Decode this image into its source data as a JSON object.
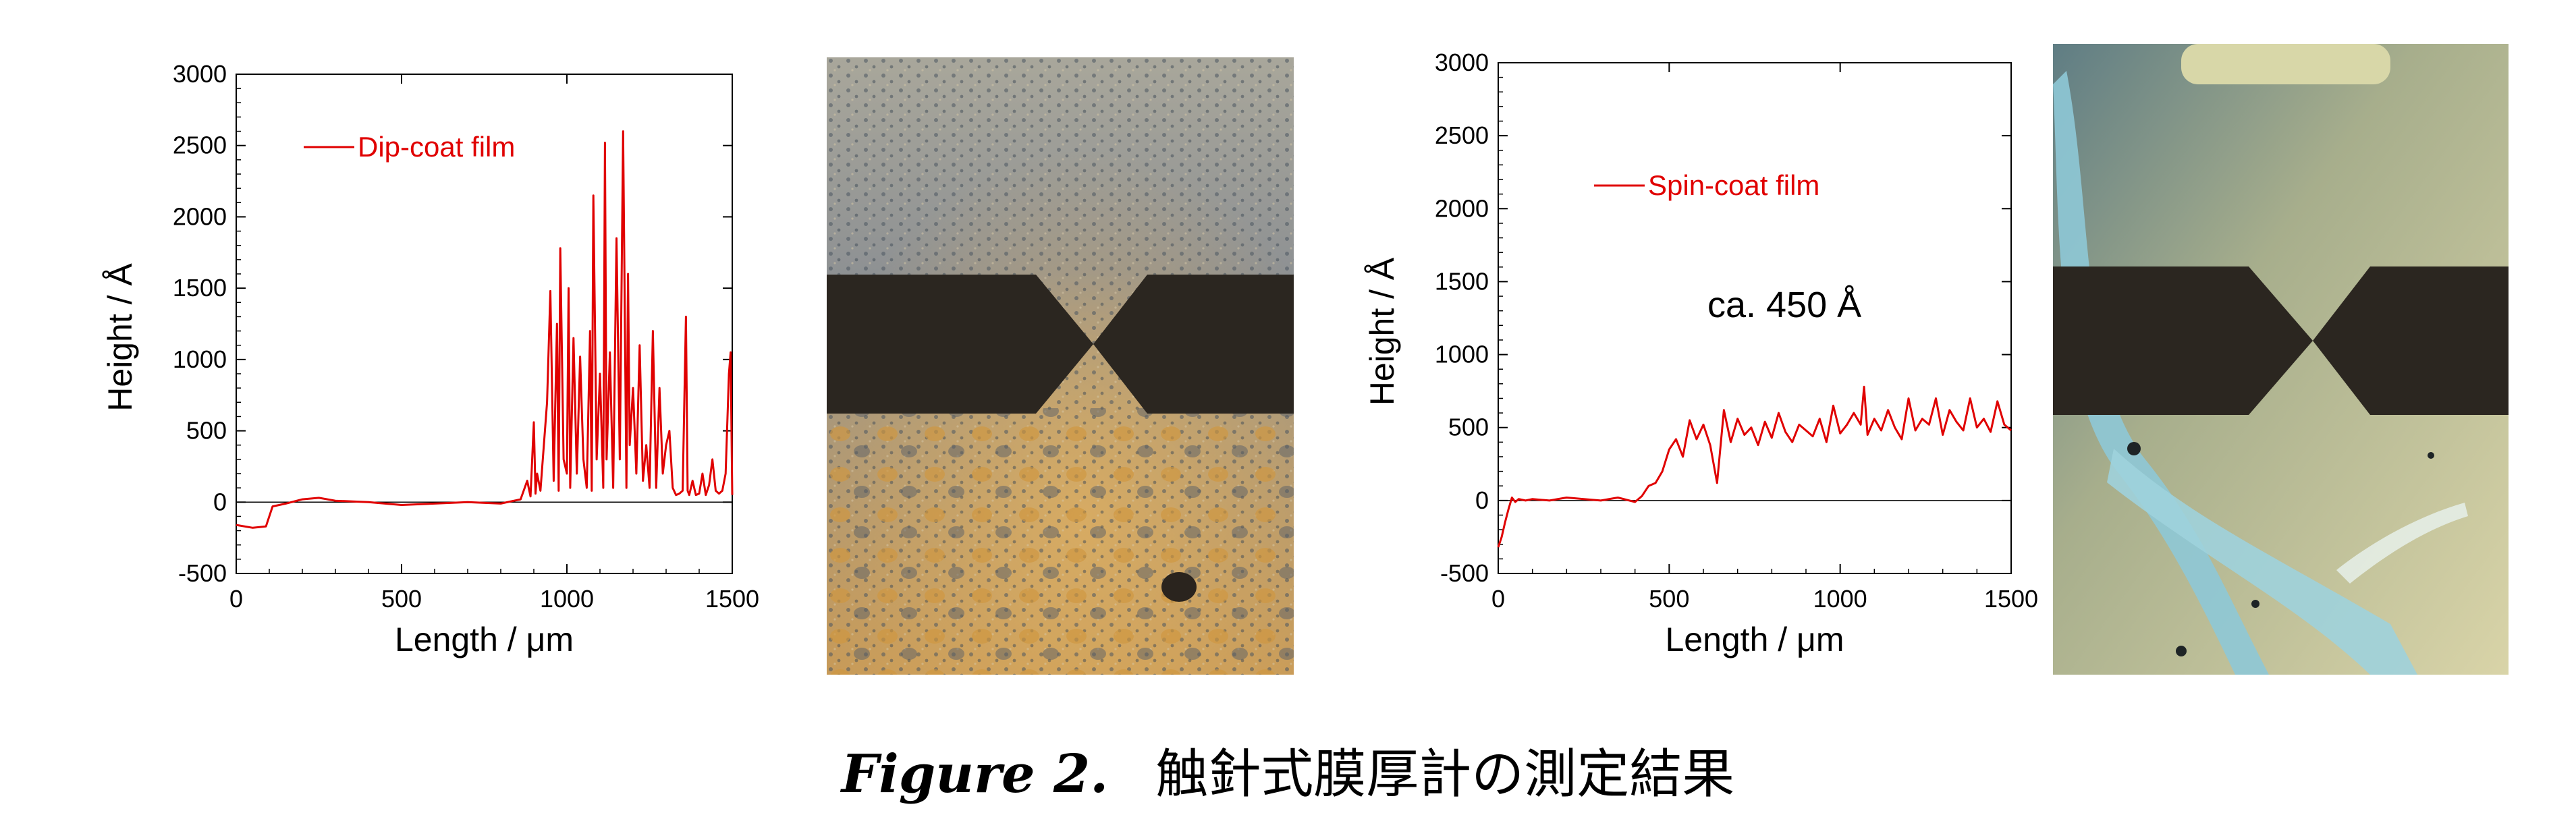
{
  "chart_data": [
    {
      "type": "line",
      "title": "",
      "xlabel": "Length / μm",
      "ylabel": "Height / Å",
      "xlim": [
        0,
        1500
      ],
      "ylim": [
        -500,
        3000
      ],
      "xticks": [
        0,
        500,
        1000,
        1500
      ],
      "yticks": [
        -500,
        0,
        500,
        1000,
        1500,
        2000,
        2500,
        3000
      ],
      "grid": false,
      "legend_placement": "top-left",
      "color": "#e00000",
      "series": [
        {
          "name": "Dip-coat film",
          "x": [
            0,
            50,
            90,
            100,
            110,
            150,
            200,
            250,
            300,
            400,
            500,
            600,
            700,
            800,
            860,
            880,
            890,
            900,
            905,
            910,
            920,
            940,
            950,
            960,
            970,
            975,
            980,
            990,
            1000,
            1005,
            1010,
            1020,
            1030,
            1040,
            1050,
            1060,
            1070,
            1075,
            1080,
            1090,
            1100,
            1110,
            1115,
            1120,
            1130,
            1140,
            1150,
            1160,
            1170,
            1180,
            1185,
            1190,
            1200,
            1210,
            1220,
            1230,
            1240,
            1250,
            1260,
            1270,
            1280,
            1290,
            1300,
            1310,
            1320,
            1330,
            1340,
            1350,
            1360,
            1365,
            1370,
            1380,
            1390,
            1400,
            1410,
            1420,
            1430,
            1440,
            1450,
            1460,
            1470,
            1480,
            1490,
            1495,
            1500
          ],
          "y": [
            -160,
            -180,
            -170,
            -100,
            -30,
            -10,
            20,
            30,
            10,
            0,
            -20,
            -10,
            0,
            -10,
            20,
            150,
            40,
            560,
            60,
            200,
            80,
            700,
            1480,
            150,
            1250,
            80,
            1780,
            300,
            200,
            1500,
            100,
            1150,
            200,
            1020,
            300,
            100,
            1200,
            80,
            2150,
            300,
            900,
            100,
            2520,
            300,
            1050,
            100,
            1850,
            300,
            2600,
            100,
            1600,
            400,
            800,
            200,
            1100,
            150,
            400,
            100,
            1200,
            100,
            800,
            200,
            400,
            500,
            100,
            50,
            60,
            80,
            1300,
            80,
            50,
            150,
            50,
            60,
            200,
            50,
            120,
            300,
            80,
            60,
            80,
            200,
            900,
            1050,
            50
          ]
        }
      ]
    },
    {
      "type": "line",
      "title": "",
      "xlabel": "Length / μm",
      "ylabel": "Height / Å",
      "xlim": [
        0,
        1500
      ],
      "ylim": [
        -500,
        3000
      ],
      "xticks": [
        0,
        500,
        1000,
        1500
      ],
      "yticks": [
        -500,
        0,
        500,
        1000,
        1500,
        2000,
        2500,
        3000
      ],
      "grid": false,
      "legend_placement": "top-left",
      "annotations": [
        "ca. 450 Å"
      ],
      "color": "#e00000",
      "series": [
        {
          "name": "Spin-coat film",
          "x": [
            0,
            10,
            20,
            30,
            40,
            50,
            60,
            80,
            100,
            150,
            200,
            250,
            300,
            350,
            400,
            420,
            440,
            460,
            480,
            500,
            520,
            540,
            560,
            580,
            600,
            620,
            640,
            660,
            680,
            700,
            720,
            740,
            760,
            780,
            800,
            820,
            840,
            860,
            880,
            900,
            920,
            940,
            960,
            980,
            1000,
            1020,
            1040,
            1060,
            1070,
            1080,
            1100,
            1120,
            1140,
            1160,
            1180,
            1200,
            1220,
            1240,
            1260,
            1280,
            1300,
            1320,
            1340,
            1360,
            1380,
            1400,
            1420,
            1440,
            1460,
            1480,
            1500
          ],
          "y": [
            -320,
            -250,
            -150,
            -60,
            20,
            -10,
            10,
            0,
            10,
            0,
            20,
            10,
            0,
            20,
            -10,
            30,
            100,
            120,
            200,
            350,
            420,
            300,
            550,
            420,
            520,
            380,
            120,
            620,
            400,
            560,
            450,
            500,
            380,
            540,
            430,
            600,
            470,
            400,
            520,
            480,
            440,
            560,
            400,
            650,
            460,
            520,
            600,
            520,
            780,
            450,
            560,
            480,
            620,
            500,
            420,
            700,
            480,
            560,
            520,
            700,
            450,
            620,
            540,
            480,
            700,
            500,
            560,
            470,
            680,
            520,
            480
          ]
        }
      ]
    }
  ],
  "photos": [
    {
      "name": "dip-coat-microscope-photo",
      "colors": [
        "#9a9a8e",
        "#c8a060",
        "#5a5f66",
        "#2b2620"
      ]
    },
    {
      "name": "spin-coat-microscope-photo",
      "colors": [
        "#c9c6a0",
        "#7fb4c6",
        "#263a3c",
        "#2b2620"
      ]
    }
  ],
  "caption": {
    "figure_label": "Figure 2.",
    "text": "触針式膜厚計の測定結果"
  }
}
